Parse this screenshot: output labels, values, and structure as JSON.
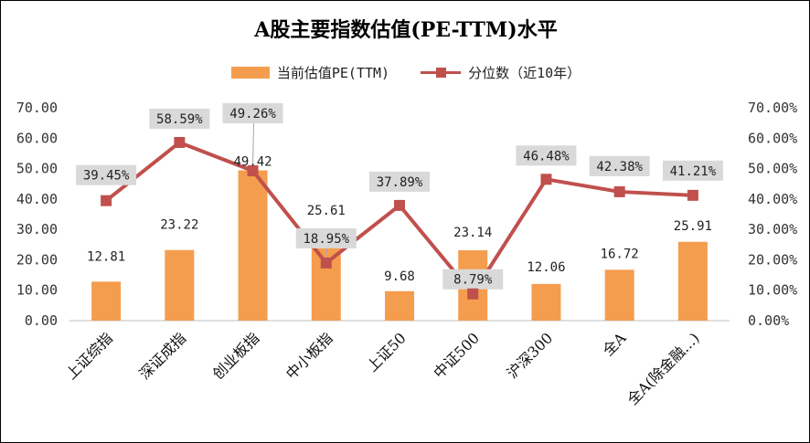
{
  "chart_data": {
    "type": "bar",
    "title": "A股主要指数估值(PE-TTM)水平",
    "categories": [
      "上证综指",
      "深证成指",
      "创业板指",
      "中小板指",
      "上证50",
      "中证500",
      "沪深300",
      "全A",
      "全A(除金融...)"
    ],
    "series": [
      {
        "name": "当前估值PE(TTM)",
        "type": "bar",
        "axis": "left",
        "values": [
          12.81,
          23.22,
          49.42,
          25.61,
          9.68,
          23.14,
          12.06,
          16.72,
          25.91
        ],
        "labels": [
          "12.81",
          "23.22",
          "49.42",
          "25.61",
          "9.68",
          "23.14",
          "12.06",
          "16.72",
          "25.91"
        ]
      },
      {
        "name": "分位数（近10年）",
        "type": "line",
        "axis": "right",
        "values": [
          39.45,
          58.59,
          49.26,
          18.95,
          37.89,
          8.79,
          46.48,
          42.38,
          41.21
        ],
        "labels": [
          "39.45%",
          "58.59%",
          "49.26%",
          "18.95%",
          "37.89%",
          "8.79%",
          "46.48%",
          "42.38%",
          "41.21%"
        ]
      }
    ],
    "y_left": {
      "ylim": [
        0,
        70
      ],
      "ticks": [
        "0.00",
        "10.00",
        "20.00",
        "30.00",
        "40.00",
        "50.00",
        "60.00",
        "70.00"
      ]
    },
    "y_right": {
      "ylim": [
        0,
        70
      ],
      "ticks": [
        "0.00%",
        "10.00%",
        "20.00%",
        "30.00%",
        "40.00%",
        "50.00%",
        "60.00%",
        "70.00%"
      ]
    },
    "legend": "top-center",
    "grid": false,
    "colors": {
      "bar": "#F59D4E",
      "line": "#C0504D",
      "label_box": "#D9D9D9"
    }
  }
}
